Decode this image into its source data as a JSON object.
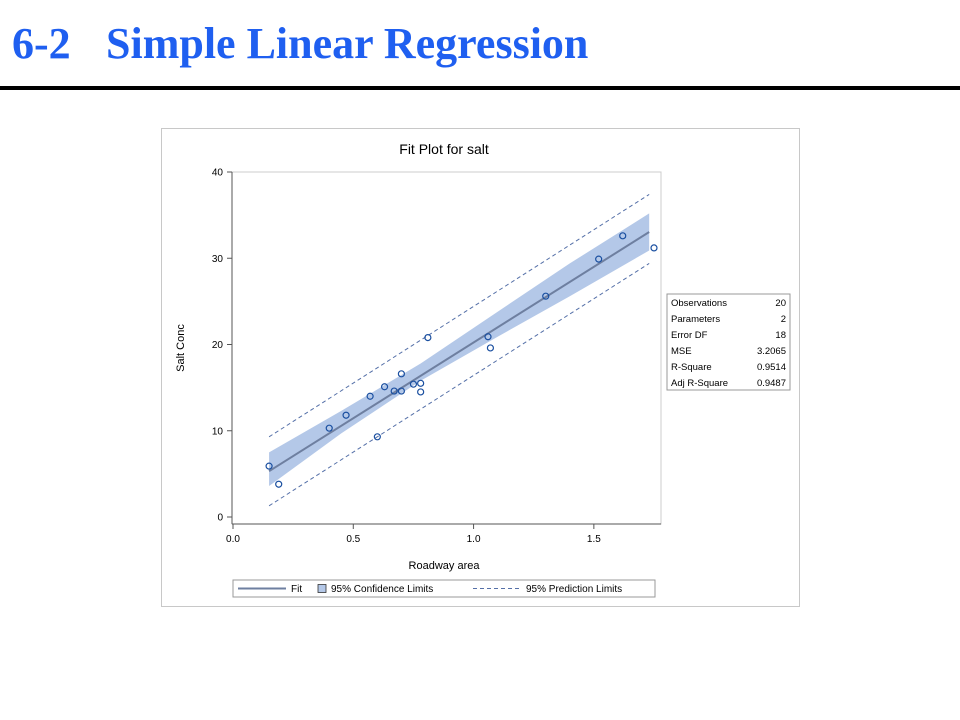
{
  "slide": {
    "number": "6-2",
    "title": "Simple Linear Regression"
  },
  "chart_data": {
    "type": "scatter",
    "title": "Fit Plot for salt",
    "xlabel": "Roadway area",
    "ylabel": "Salt Conc",
    "xlim": [
      0.0,
      1.75
    ],
    "ylim": [
      0,
      40
    ],
    "xticks": [
      "0.0",
      "0.5",
      "1.0",
      "1.5"
    ],
    "yticks": [
      "0",
      "10",
      "20",
      "30",
      "40"
    ],
    "points": [
      {
        "x": 0.15,
        "y": 5.9
      },
      {
        "x": 0.19,
        "y": 3.8
      },
      {
        "x": 0.4,
        "y": 10.3
      },
      {
        "x": 0.47,
        "y": 11.8
      },
      {
        "x": 0.57,
        "y": 14.0
      },
      {
        "x": 0.6,
        "y": 9.3
      },
      {
        "x": 0.63,
        "y": 15.1
      },
      {
        "x": 0.67,
        "y": 14.6
      },
      {
        "x": 0.7,
        "y": 14.6
      },
      {
        "x": 0.7,
        "y": 16.6
      },
      {
        "x": 0.75,
        "y": 15.4
      },
      {
        "x": 0.78,
        "y": 14.5
      },
      {
        "x": 0.78,
        "y": 15.5
      },
      {
        "x": 0.81,
        "y": 20.8
      },
      {
        "x": 1.06,
        "y": 20.9
      },
      {
        "x": 1.07,
        "y": 19.6
      },
      {
        "x": 1.3,
        "y": 25.6
      },
      {
        "x": 1.52,
        "y": 29.9
      },
      {
        "x": 1.62,
        "y": 32.6
      },
      {
        "x": 1.75,
        "y": 31.2
      }
    ],
    "fit": {
      "intercept": 2.68,
      "slope": 17.55,
      "x_range": [
        0.15,
        1.73
      ]
    },
    "confidence_band": [
      {
        "x": 0.15,
        "lo": 3.6,
        "hi": 7.5
      },
      {
        "x": 0.45,
        "lo": 9.7,
        "hi": 12.3
      },
      {
        "x": 0.78,
        "lo": 15.8,
        "hi": 17.8
      },
      {
        "x": 1.1,
        "lo": 20.9,
        "hi": 23.8
      },
      {
        "x": 1.4,
        "lo": 25.6,
        "hi": 29.4
      },
      {
        "x": 1.73,
        "lo": 30.9,
        "hi": 35.2
      }
    ],
    "prediction_limits": {
      "lower": [
        {
          "x": 0.15,
          "y": 1.3
        },
        {
          "x": 1.73,
          "y": 29.4
        }
      ],
      "upper": [
        {
          "x": 0.15,
          "y": 9.3
        },
        {
          "x": 1.73,
          "y": 37.4
        }
      ]
    },
    "stats_table": [
      {
        "label": "Observations",
        "value": "20"
      },
      {
        "label": "Parameters",
        "value": "2"
      },
      {
        "label": "Error DF",
        "value": "18"
      },
      {
        "label": "MSE",
        "value": "3.2065"
      },
      {
        "label": "R-Square",
        "value": "0.9514"
      },
      {
        "label": "Adj R-Square",
        "value": "0.9487"
      }
    ],
    "legend": {
      "position": "bottom",
      "items": [
        "Fit",
        "95% Confidence Limits",
        "95% Prediction Limits"
      ]
    },
    "colors": {
      "fit_line": "#6e7fa0",
      "band": "#b4c8e8",
      "prediction": "#5570a8",
      "marker": "#1a4fa0",
      "axis": "#555555"
    }
  }
}
